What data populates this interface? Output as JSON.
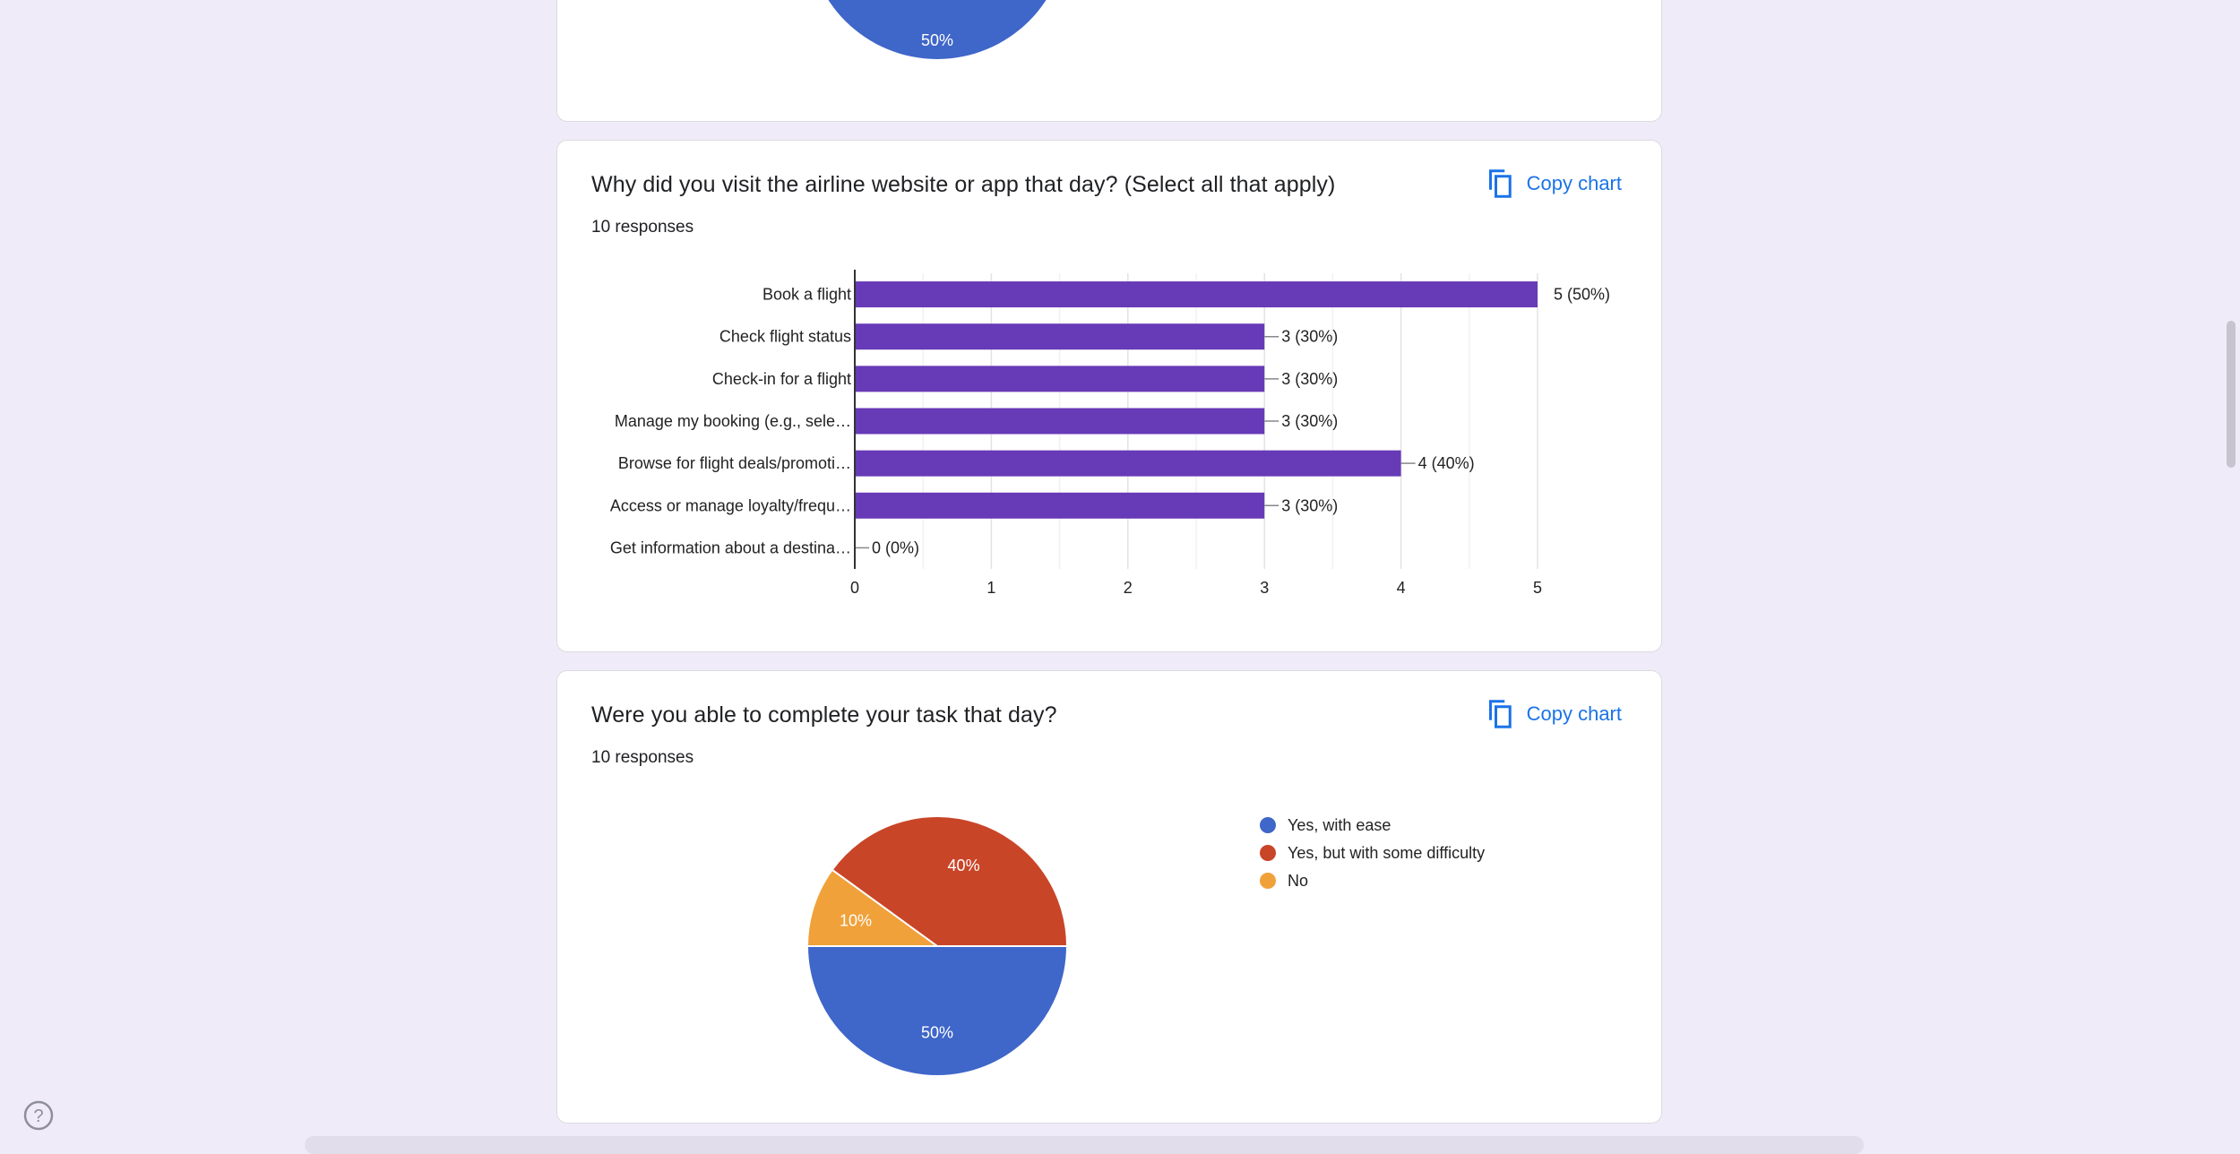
{
  "previous_chart": {
    "slice_label": "50%",
    "color": "#3f66c9"
  },
  "question_visit": {
    "title": "Why did you visit the airline website or app that day? (Select all that apply)",
    "responses": "10 responses",
    "copy_label": "Copy chart"
  },
  "question_complete": {
    "title": "Were you able to complete your task that day?",
    "responses": "10 responses",
    "copy_label": "Copy chart"
  },
  "chart_data": [
    {
      "type": "bar",
      "orientation": "horizontal",
      "categories": [
        "Book a flight",
        "Check flight status",
        "Check-in for a flight",
        "Manage my booking (e.g., sele…",
        "Browse for flight deals/promoti…",
        "Access or manage loyalty/frequ…",
        "Get information about a destina…"
      ],
      "values": [
        5,
        3,
        3,
        3,
        4,
        3,
        0
      ],
      "data_labels": [
        "5 (50%)",
        "3 (30%)",
        "3 (30%)",
        "3 (30%)",
        "4 (40%)",
        "3 (30%)",
        "0 (0%)"
      ],
      "xlim": [
        0,
        5
      ],
      "xticks": [
        "0",
        "1",
        "2",
        "3",
        "4",
        "5"
      ],
      "grid": true,
      "color": "#673ab7"
    },
    {
      "type": "pie",
      "labels": [
        "Yes, with ease",
        "Yes, but with some difficulty",
        "No"
      ],
      "values": [
        50,
        40,
        10
      ],
      "slice_labels": [
        "50%",
        "40%",
        "10%"
      ],
      "colors": [
        "#3f66c9",
        "#c94528",
        "#f0a13a"
      ],
      "legend_position": "right"
    }
  ],
  "help_icon": "help-circle-icon"
}
